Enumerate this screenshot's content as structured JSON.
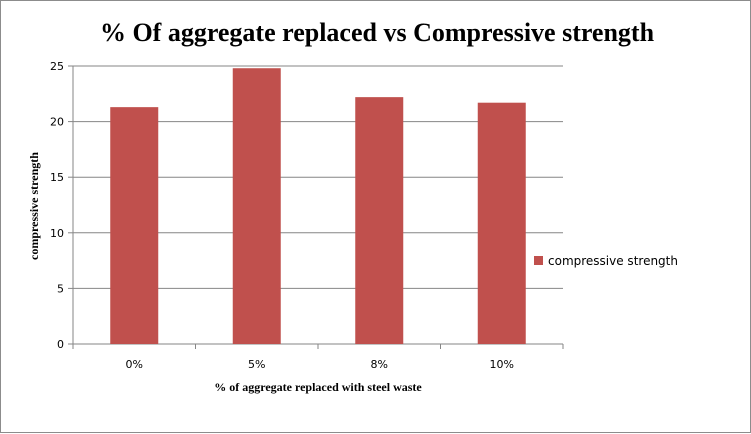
{
  "chart_data": {
    "type": "bar",
    "title": "% Of aggregate replaced vs Compressive strength",
    "xlabel": "% of aggregate replaced with steel waste",
    "ylabel": "compressive strength",
    "categories": [
      "0%",
      "5%",
      "8%",
      "10%"
    ],
    "series": [
      {
        "name": "compressive strength",
        "values": [
          21.3,
          24.8,
          22.2,
          21.7
        ],
        "color": "#c0504d"
      }
    ],
    "ylim": [
      0,
      25
    ],
    "yticks": [
      0,
      5,
      10,
      15,
      20,
      25
    ],
    "grid": true,
    "legend": "right"
  }
}
